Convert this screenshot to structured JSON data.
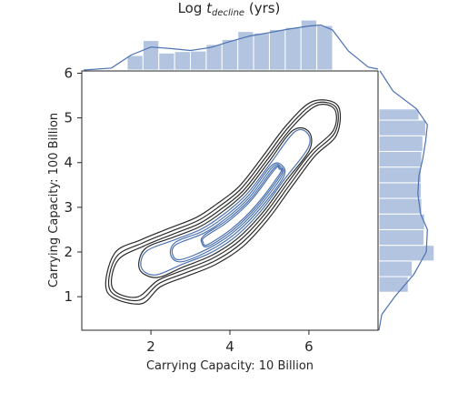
{
  "chart_data": {
    "type": "jointplot-kde",
    "title": {
      "prefix": "Log ",
      "italic_base": "t",
      "subscript": "decline",
      "suffix": " (yrs)"
    },
    "xlabel": "Carrying Capacity: 10 Billion",
    "ylabel": "Carrying Capacity: 100 Billion",
    "xlim": [
      0.25,
      7.75
    ],
    "ylim": [
      0.25,
      6.05
    ],
    "xticks": [
      2,
      4,
      6
    ],
    "yticks": [
      1,
      2,
      3,
      4,
      5,
      6
    ],
    "grid": false,
    "colors": {
      "hist_fill": "#b3c4e1",
      "kde_line": "#4c72b0",
      "contour_outer": "#2b2b2b",
      "contour_inner": "#4c72b0",
      "axis": "#262626"
    },
    "x_marginal_hist": {
      "bin_edges": [
        1.4,
        1.8,
        2.2,
        2.6,
        3.0,
        3.4,
        3.8,
        4.2,
        4.6,
        5.0,
        5.4,
        5.8,
        6.2,
        6.6
      ],
      "heights": [
        0.29,
        0.59,
        0.34,
        0.37,
        0.38,
        0.51,
        0.61,
        0.77,
        0.74,
        0.81,
        0.85,
        1.0,
        0.89
      ]
    },
    "x_marginal_kde": {
      "x": [
        0.3,
        1.0,
        1.5,
        2.0,
        2.5,
        3.0,
        3.5,
        4.0,
        4.5,
        5.0,
        5.5,
        6.0,
        6.3,
        6.6,
        7.0,
        7.5,
        7.75
      ],
      "density": [
        0.0,
        0.04,
        0.3,
        0.46,
        0.43,
        0.39,
        0.45,
        0.57,
        0.68,
        0.75,
        0.82,
        0.88,
        0.9,
        0.8,
        0.38,
        0.06,
        0.02
      ]
    },
    "y_marginal_hist": {
      "bin_edges": [
        1.1,
        1.45,
        1.8,
        2.15,
        2.5,
        2.85,
        3.2,
        3.55,
        3.9,
        4.25,
        4.6,
        4.95,
        5.2
      ],
      "widths": [
        0.52,
        0.59,
        0.98,
        0.8,
        0.81,
        0.76,
        0.75,
        0.75,
        0.76,
        0.78,
        0.83,
        0.71
      ]
    },
    "y_marginal_kde": {
      "y": [
        0.25,
        0.6,
        1.0,
        1.5,
        2.0,
        2.5,
        2.85,
        3.3,
        3.7,
        4.1,
        4.5,
        4.85,
        5.2,
        5.6,
        6.05
      ],
      "density": [
        0.0,
        0.05,
        0.28,
        0.62,
        0.84,
        0.86,
        0.74,
        0.69,
        0.71,
        0.78,
        0.83,
        0.86,
        0.67,
        0.25,
        0.02
      ]
    },
    "kde_contours": {
      "ridge": [
        {
          "x": 1.4,
          "y": 1.4,
          "w": 0.65
        },
        {
          "x": 2.0,
          "y": 1.75,
          "w": 0.58
        },
        {
          "x": 2.7,
          "y": 2.0,
          "w": 0.58
        },
        {
          "x": 3.4,
          "y": 2.25,
          "w": 0.58
        },
        {
          "x": 4.0,
          "y": 2.6,
          "w": 0.58
        },
        {
          "x": 4.6,
          "y": 3.1,
          "w": 0.52
        },
        {
          "x": 5.2,
          "y": 3.8,
          "w": 0.5
        },
        {
          "x": 5.8,
          "y": 4.5,
          "w": 0.5
        },
        {
          "x": 6.4,
          "y": 5.0,
          "w": 0.48
        }
      ],
      "level_scales": [
        1.0,
        0.86,
        0.73,
        0.61,
        0.5,
        0.4,
        0.31,
        0.23,
        0.16
      ],
      "inner_blue_from_level": 4
    }
  }
}
